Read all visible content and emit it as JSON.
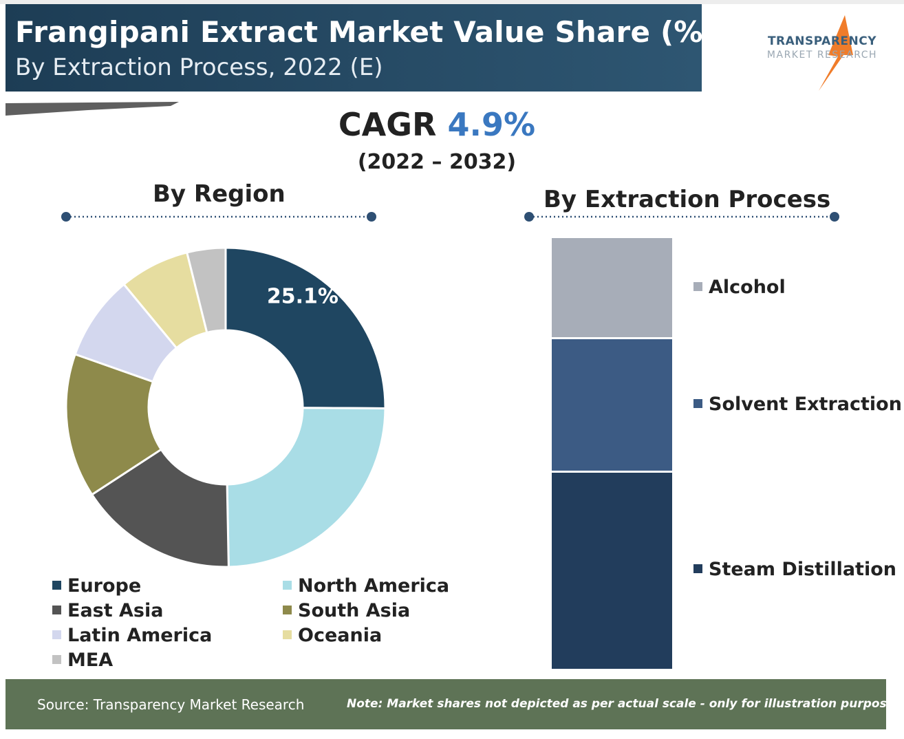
{
  "header": {
    "title": "Frangipani Extract Market Value Share (%)",
    "subtitle": "By Extraction Process, 2022 (E)"
  },
  "logo": {
    "line1": "TRANSPARENCY",
    "line2": "MARKET RESEARCH"
  },
  "cagr": {
    "label": "CAGR",
    "value": "4.9%",
    "period": "(2022 – 2032)"
  },
  "footer": {
    "source": "Source: Transparency Market Research",
    "note": "Note: Market shares not depicted as per actual scale - only for illustration purposes"
  },
  "colors": {
    "header_bg": "#1d3d55",
    "cagr_accent": "#3a78c0",
    "footer_bg": "#5e7356"
  },
  "chart_data": [
    {
      "type": "pie",
      "title": "By Region",
      "series": [
        {
          "name": "Europe",
          "value": 25.1,
          "label": "25.1%",
          "color": "#1f4661"
        },
        {
          "name": "North America",
          "value": 24.6,
          "label": "",
          "color": "#a9dde6"
        },
        {
          "name": "East Asia",
          "value": 16.1,
          "label": "",
          "color": "#545454"
        },
        {
          "name": "South Asia",
          "value": 14.6,
          "label": "",
          "color": "#8e8a4b"
        },
        {
          "name": "Latin America",
          "value": 8.6,
          "label": "",
          "color": "#d3d7ee"
        },
        {
          "name": "Oceania",
          "value": 7.1,
          "label": "",
          "color": "#e6dda0"
        },
        {
          "name": "MEA",
          "value": 3.9,
          "label": "",
          "color": "#c2c2c2"
        }
      ],
      "legend_order": [
        "Europe",
        "North America",
        "East Asia",
        "South Asia",
        "Latin America",
        "Oceania",
        "MEA"
      ],
      "legend_position": "bottom"
    },
    {
      "type": "bar",
      "title": "By Extraction Process",
      "stacked": true,
      "series": [
        {
          "name": "Alcohol",
          "value": 23.5,
          "color": "#a7adb8"
        },
        {
          "name": "Solvent Extraction",
          "value": 31.0,
          "color": "#3c5b84"
        },
        {
          "name": "Steam Distillation",
          "value": 45.5,
          "color": "#223d5c"
        }
      ],
      "legend_position": "right"
    }
  ]
}
